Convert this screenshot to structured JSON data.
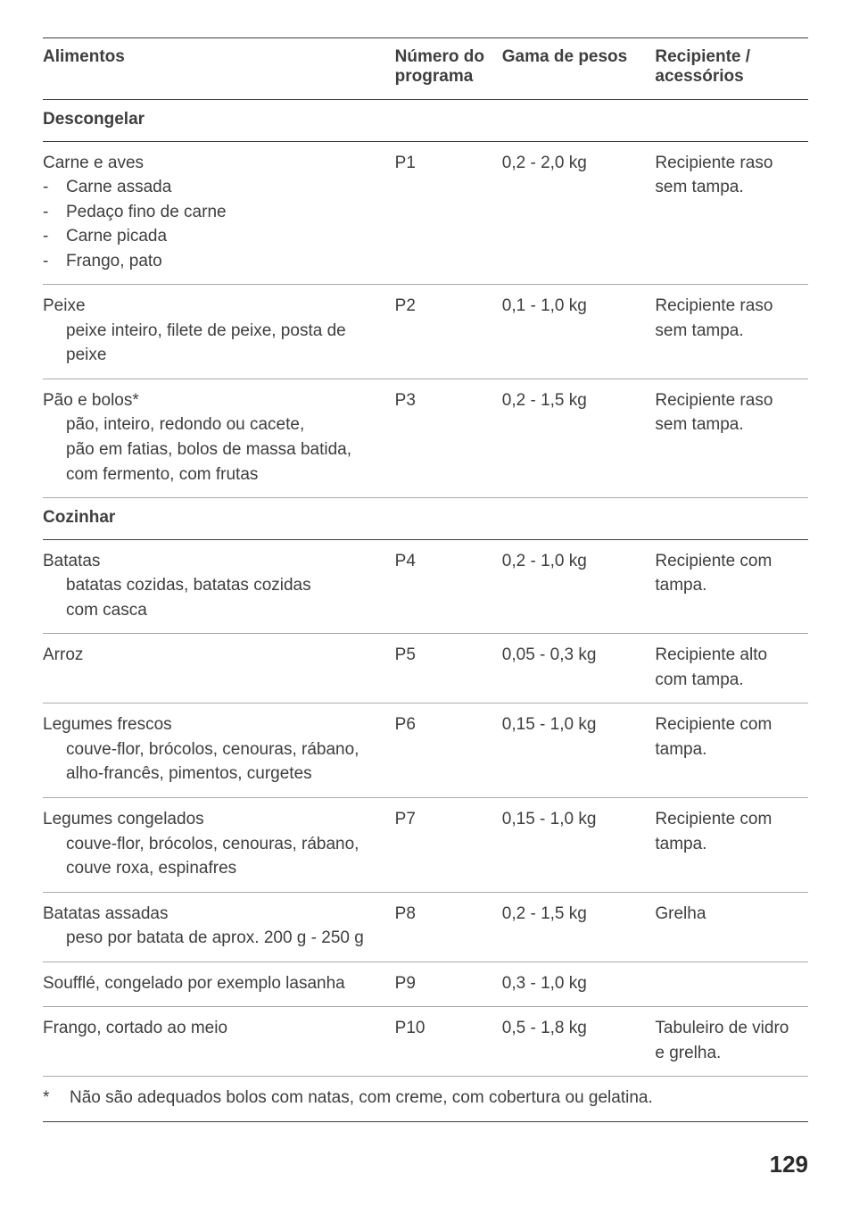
{
  "header": {
    "columns": [
      "Alimentos",
      "Número do\nprograma",
      "Gama de pesos",
      "Recipiente /\nacessórios"
    ]
  },
  "sections": [
    {
      "title": "Descongelar",
      "rows": [
        {
          "food_main": "Carne e aves",
          "food_subs_dashed": [
            "Carne assada",
            "Pedaço fino de carne",
            "Carne picada",
            "Frango, pato"
          ],
          "prog": "P1",
          "weight": "0,2 - 2,0 kg",
          "recip": "Recipiente raso\nsem tampa."
        },
        {
          "food_main": "Peixe",
          "food_subs": [
            "peixe inteiro, filete de peixe, posta de peixe"
          ],
          "prog": "P2",
          "weight": "0,1 - 1,0 kg",
          "recip": "Recipiente raso\nsem tampa."
        },
        {
          "food_main": "Pão e bolos*",
          "food_subs": [
            "pão, inteiro, redondo ou cacete,",
            "pão em fatias, bolos de massa batida,",
            "com fermento, com frutas"
          ],
          "prog": "P3",
          "weight": "0,2 - 1,5 kg",
          "recip": "Recipiente raso\nsem tampa."
        }
      ]
    },
    {
      "title": "Cozinhar",
      "rows": [
        {
          "food_main": "Batatas",
          "food_subs": [
            "batatas cozidas, batatas cozidas",
            "com casca"
          ],
          "prog": "P4",
          "weight": "0,2 - 1,0 kg",
          "recip": "Recipiente com\ntampa."
        },
        {
          "food_main": "Arroz",
          "prog": "P5",
          "weight": "0,05 - 0,3 kg",
          "recip": "Recipiente alto\ncom tampa."
        },
        {
          "food_main": "Legumes frescos",
          "food_subs": [
            "couve-flor, brócolos, cenouras, rábano,",
            "alho-francês, pimentos, curgetes"
          ],
          "prog": "P6",
          "weight": "0,15 - 1,0 kg",
          "recip": "Recipiente com\ntampa."
        },
        {
          "food_main": "Legumes congelados",
          "food_subs": [
            "couve-flor, brócolos, cenouras, rábano,",
            "couve roxa, espinafres"
          ],
          "prog": "P7",
          "weight": "0,15 - 1,0 kg",
          "recip": "Recipiente com\ntampa."
        },
        {
          "food_main": "Batatas assadas",
          "food_subs": [
            "peso por batata de aprox. 200 g - 250 g"
          ],
          "prog": "P8",
          "weight": "0,2 - 1,5 kg",
          "recip": "Grelha"
        },
        {
          "food_main": "Soufflé, congelado por exemplo lasanha",
          "prog": "P9",
          "weight": "0,3 - 1,0 kg",
          "recip": ""
        },
        {
          "food_main": "Frango, cortado ao meio",
          "prog": "P10",
          "weight": "0,5 - 1,8 kg",
          "recip": "Tabuleiro de vidro\ne grelha."
        }
      ]
    }
  ],
  "footnote": {
    "star": "*",
    "text": "Não são adequados bolos com natas, com creme, com cobertura ou gelatina."
  },
  "page_number": "129"
}
